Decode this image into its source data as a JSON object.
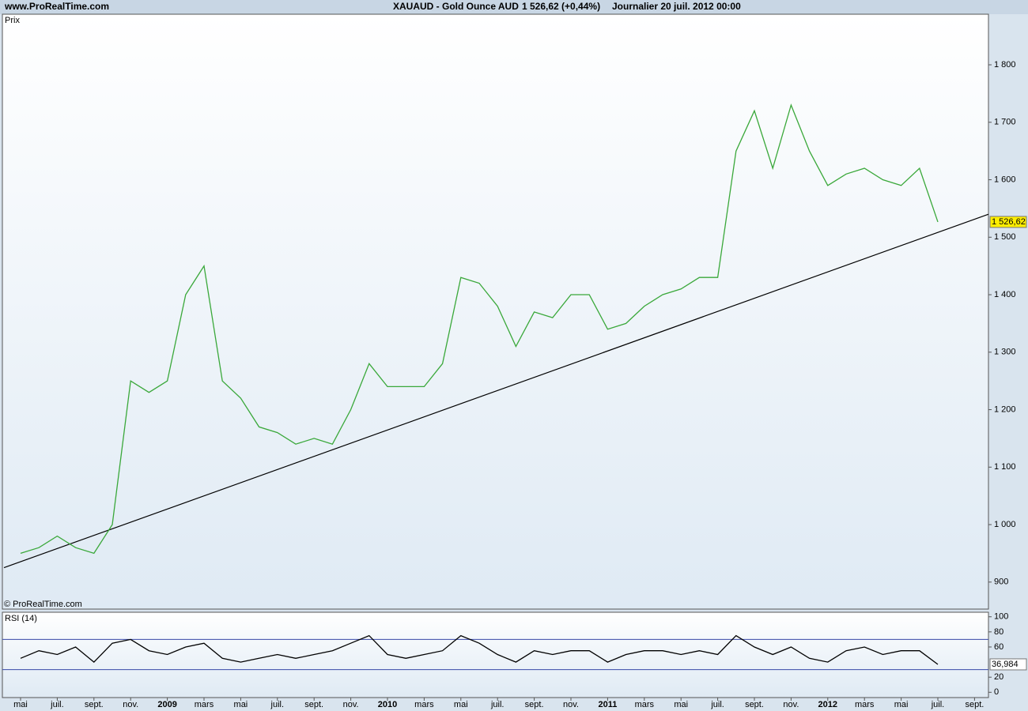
{
  "header": {
    "site": "www.ProRealTime.com",
    "instrument": "XAUAUD - Gold Ounce AUD",
    "quote": "1 526,62 (+0,44%)",
    "period": "Journalier  20 juil. 2012 00:00"
  },
  "chart_data": [
    {
      "type": "line",
      "title": "Prix",
      "copyright": "© ProRealTime.com",
      "color": "#3aa83a",
      "categories": [
        "mai",
        null,
        "juil.",
        null,
        "sept.",
        null,
        "nov.",
        null,
        "2009",
        null,
        "mars",
        null,
        "mai",
        null,
        "juil.",
        null,
        "sept.",
        null,
        "nov.",
        null,
        "2010",
        null,
        "mars",
        null,
        "mai",
        null,
        "juil.",
        null,
        "sept.",
        null,
        "nov.",
        null,
        "2011",
        null,
        "mars",
        null,
        "mai",
        null,
        "juil.",
        null,
        "sept.",
        null,
        "nov.",
        null,
        "2012",
        null,
        "mars",
        null,
        "mai",
        null,
        "juil.",
        null,
        "sept."
      ],
      "values": [
        950,
        960,
        980,
        960,
        950,
        1000,
        1250,
        1230,
        1250,
        1400,
        1450,
        1250,
        1220,
        1170,
        1160,
        1140,
        1150,
        1140,
        1200,
        1280,
        1240,
        1240,
        1240,
        1280,
        1430,
        1420,
        1380,
        1310,
        1370,
        1360,
        1400,
        1400,
        1340,
        1350,
        1380,
        1400,
        1410,
        1430,
        1430,
        1650,
        1720,
        1620,
        1730,
        1650,
        1590,
        1610,
        1620,
        1600,
        1590,
        1620,
        1526.62,
        null,
        null
      ],
      "last_value": {
        "value": 1526.62,
        "label": "1 526,62"
      },
      "trendline": [
        925,
        1540
      ],
      "ylim": [
        853,
        1888
      ],
      "yticks": [
        900,
        {
          "value": 1000,
          "label": "1 000"
        },
        {
          "value": 1100,
          "label": "1 100"
        },
        {
          "value": 1200,
          "label": "1 200"
        },
        {
          "value": 1300,
          "label": "1 300"
        },
        {
          "value": 1400,
          "label": "1 400"
        },
        {
          "value": 1500,
          "label": "1 500"
        },
        {
          "value": 1600,
          "label": "1 600"
        },
        {
          "value": 1700,
          "label": "1 700"
        },
        {
          "value": 1800,
          "label": "1 800"
        }
      ]
    },
    {
      "type": "line",
      "title": "RSI (14)",
      "color": "#000000",
      "values": [
        45,
        55,
        50,
        60,
        40,
        65,
        70,
        55,
        50,
        60,
        65,
        45,
        40,
        45,
        50,
        45,
        50,
        55,
        65,
        75,
        50,
        45,
        50,
        55,
        75,
        65,
        50,
        40,
        55,
        50,
        55,
        55,
        40,
        50,
        55,
        55,
        50,
        55,
        50,
        75,
        60,
        50,
        60,
        45,
        40,
        55,
        60,
        50,
        55,
        55,
        36.984,
        null,
        null
      ],
      "last_value": {
        "value": 36.984,
        "label": "36,984"
      },
      "levels": [
        30,
        70
      ],
      "ylim": [
        -7,
        106
      ],
      "yticks": [
        0,
        20,
        60,
        80,
        100
      ]
    }
  ]
}
